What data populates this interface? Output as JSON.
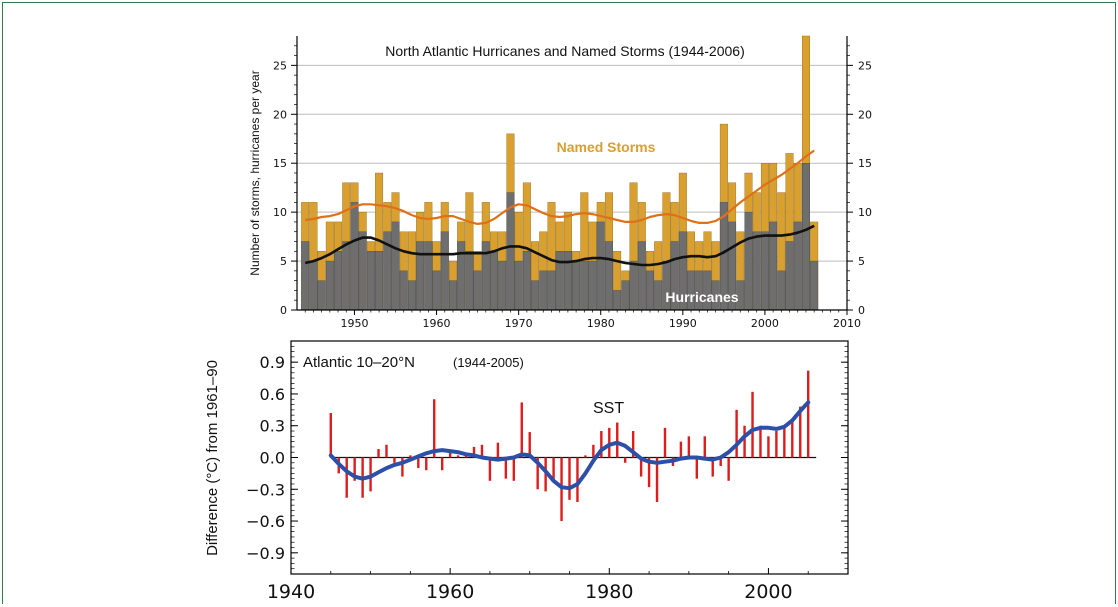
{
  "chart_data": [
    {
      "type": "bar",
      "title": "North Atlantic Hurricanes and Named Storms (1944-2006)",
      "ylabel": "Number of storms, hurricanes per year",
      "xlim": [
        1943,
        2010
      ],
      "ylim": [
        0,
        28
      ],
      "x_ticks": [
        "1950",
        "1960",
        "1970",
        "1980",
        "1990",
        "2000",
        "2010"
      ],
      "y_ticks_left": [
        "0",
        "5",
        "10",
        "15",
        "20",
        "25"
      ],
      "y_ticks_right": [
        "0",
        "5",
        "10",
        "15",
        "20",
        "25"
      ],
      "years": [
        1944,
        1945,
        1946,
        1947,
        1948,
        1949,
        1950,
        1951,
        1952,
        1953,
        1954,
        1955,
        1956,
        1957,
        1958,
        1959,
        1960,
        1961,
        1962,
        1963,
        1964,
        1965,
        1966,
        1967,
        1968,
        1969,
        1970,
        1971,
        1972,
        1973,
        1974,
        1975,
        1976,
        1977,
        1978,
        1979,
        1980,
        1981,
        1982,
        1983,
        1984,
        1985,
        1986,
        1987,
        1988,
        1989,
        1990,
        1991,
        1992,
        1993,
        1994,
        1995,
        1996,
        1997,
        1998,
        1999,
        2000,
        2001,
        2002,
        2003,
        2004,
        2005,
        2006
      ],
      "series": [
        {
          "name": "Named Storms",
          "color": "#d9a030",
          "values": [
            11,
            11,
            6,
            9,
            9,
            13,
            13,
            10,
            7,
            14,
            11,
            12,
            8,
            8,
            10,
            11,
            7,
            11,
            5,
            9,
            12,
            6,
            11,
            8,
            8,
            18,
            10,
            13,
            7,
            8,
            11,
            9,
            10,
            6,
            12,
            9,
            11,
            12,
            6,
            4,
            13,
            11,
            6,
            7,
            12,
            11,
            14,
            8,
            7,
            8,
            7,
            19,
            13,
            8,
            14,
            12,
            15,
            15,
            12,
            16,
            15,
            28,
            9
          ]
        },
        {
          "name": "Hurricanes",
          "color": "#6e6e6e",
          "values": [
            7,
            5,
            3,
            5,
            6,
            7,
            11,
            8,
            6,
            6,
            8,
            9,
            4,
            3,
            7,
            7,
            4,
            8,
            3,
            7,
            6,
            4,
            7,
            6,
            5,
            12,
            5,
            6,
            3,
            4,
            4,
            6,
            6,
            5,
            5,
            5,
            9,
            7,
            2,
            3,
            5,
            7,
            4,
            3,
            5,
            7,
            8,
            4,
            4,
            4,
            3,
            11,
            9,
            3,
            10,
            8,
            8,
            9,
            4,
            7,
            9,
            15,
            5
          ]
        }
      ],
      "smoothed": [
        {
          "name": "Named Storms",
          "color": "#e07018",
          "values": [
            9.2,
            9.3,
            9.5,
            9.6,
            9.8,
            10.2,
            10.6,
            10.8,
            10.8,
            10.7,
            10.6,
            10.4,
            10.1,
            9.7,
            9.4,
            9.3,
            9.4,
            9.6,
            9.6,
            9.3,
            9.0,
            8.8,
            8.9,
            9.3,
            9.9,
            10.5,
            10.8,
            10.7,
            10.3,
            9.9,
            9.6,
            9.5,
            9.6,
            9.8,
            9.9,
            9.8,
            9.6,
            9.4,
            9.2,
            9.0,
            9.0,
            9.2,
            9.5,
            9.7,
            9.8,
            9.7,
            9.4,
            9.1,
            8.9,
            8.9,
            9.1,
            9.6,
            10.3,
            11.0,
            11.6,
            12.2,
            12.8,
            13.3,
            13.8,
            14.4,
            15.0,
            15.7,
            16.3
          ]
        },
        {
          "name": "Hurricanes",
          "color": "#111111",
          "values": [
            4.8,
            5.0,
            5.3,
            5.7,
            6.2,
            6.7,
            7.1,
            7.4,
            7.4,
            7.1,
            6.7,
            6.3,
            6.0,
            5.8,
            5.7,
            5.7,
            5.7,
            5.7,
            5.7,
            5.8,
            5.8,
            5.8,
            5.8,
            6.0,
            6.3,
            6.5,
            6.5,
            6.3,
            5.9,
            5.5,
            5.1,
            4.9,
            4.9,
            5.0,
            5.2,
            5.3,
            5.3,
            5.2,
            5.0,
            4.8,
            4.7,
            4.6,
            4.6,
            4.7,
            4.9,
            5.2,
            5.4,
            5.5,
            5.5,
            5.4,
            5.5,
            5.9,
            6.4,
            6.9,
            7.3,
            7.5,
            7.6,
            7.6,
            7.6,
            7.7,
            7.9,
            8.2,
            8.6
          ]
        }
      ],
      "labels": {
        "named_storms": "Named Storms",
        "hurricanes": "Hurricanes"
      }
    },
    {
      "type": "bar",
      "title": "Atlantic 10–20°N",
      "subtitle": "(1944-2005)",
      "annotation": "SST",
      "ylabel": "Difference (°C) from 1961–90",
      "xlim": [
        1940,
        2010
      ],
      "ylim": [
        -1.1,
        1.1
      ],
      "x_ticks": [
        "1940",
        "1960",
        "1980",
        "2000"
      ],
      "y_ticks": [
        "0.9",
        "0.6",
        "0.3",
        "0.0",
        "−0.3",
        "−0.6",
        "−0.9"
      ],
      "years": [
        1945,
        1946,
        1947,
        1948,
        1949,
        1950,
        1951,
        1952,
        1953,
        1954,
        1955,
        1956,
        1957,
        1958,
        1959,
        1960,
        1961,
        1962,
        1963,
        1964,
        1965,
        1966,
        1967,
        1968,
        1969,
        1970,
        1971,
        1972,
        1973,
        1974,
        1975,
        1976,
        1977,
        1978,
        1979,
        1980,
        1981,
        1982,
        1983,
        1984,
        1985,
        1986,
        1987,
        1988,
        1989,
        1990,
        1991,
        1992,
        1993,
        1994,
        1995,
        1996,
        1997,
        1998,
        1999,
        2000,
        2001,
        2002,
        2003,
        2004,
        2005
      ],
      "series": [
        {
          "name": "SST anomaly",
          "color": "#dd1c1c",
          "values": [
            0.42,
            -0.15,
            -0.38,
            -0.22,
            -0.38,
            -0.32,
            0.08,
            0.12,
            -0.05,
            -0.18,
            0.02,
            -0.1,
            -0.12,
            0.55,
            -0.12,
            0.06,
            0.02,
            0.02,
            0.1,
            0.12,
            -0.22,
            0.14,
            -0.2,
            -0.22,
            0.52,
            0.24,
            -0.3,
            -0.32,
            -0.22,
            -0.6,
            -0.4,
            -0.42,
            0.02,
            0.12,
            0.25,
            0.28,
            0.33,
            -0.05,
            0.25,
            -0.18,
            -0.28,
            -0.42,
            0.28,
            -0.08,
            0.15,
            0.2,
            -0.2,
            0.2,
            -0.18,
            -0.08,
            -0.22,
            0.45,
            0.3,
            0.62,
            0.3,
            0.2,
            0.25,
            0.3,
            0.35,
            0.48,
            0.82
          ]
        }
      ],
      "smoothed": [
        {
          "name": "SST smoothed",
          "color": "#2c4fa8",
          "values": [
            0.02,
            -0.06,
            -0.13,
            -0.18,
            -0.2,
            -0.18,
            -0.14,
            -0.1,
            -0.07,
            -0.05,
            -0.02,
            0.01,
            0.04,
            0.06,
            0.07,
            0.06,
            0.05,
            0.03,
            0.02,
            0.0,
            -0.01,
            -0.02,
            -0.01,
            0.0,
            0.03,
            0.02,
            -0.05,
            -0.13,
            -0.22,
            -0.28,
            -0.29,
            -0.25,
            -0.15,
            -0.03,
            0.07,
            0.12,
            0.14,
            0.11,
            0.05,
            -0.01,
            -0.04,
            -0.05,
            -0.04,
            -0.03,
            -0.01,
            0.0,
            0.0,
            -0.01,
            -0.02,
            0.0,
            0.05,
            0.12,
            0.2,
            0.26,
            0.28,
            0.28,
            0.27,
            0.29,
            0.35,
            0.44,
            0.52
          ]
        }
      ]
    }
  ]
}
